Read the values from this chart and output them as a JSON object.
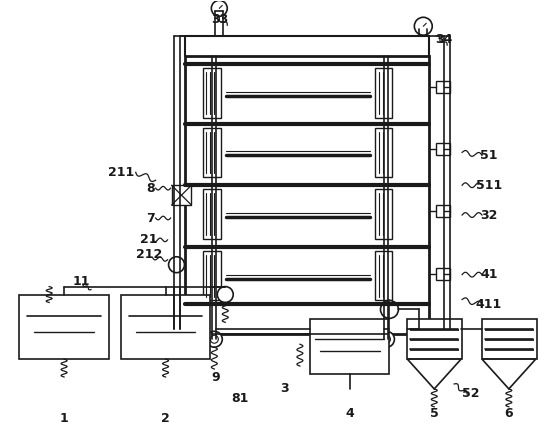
{
  "bg_color": "#ffffff",
  "line_color": "#1a1a1a",
  "lw": 1.3,
  "fig_width": 5.6,
  "fig_height": 4.4
}
